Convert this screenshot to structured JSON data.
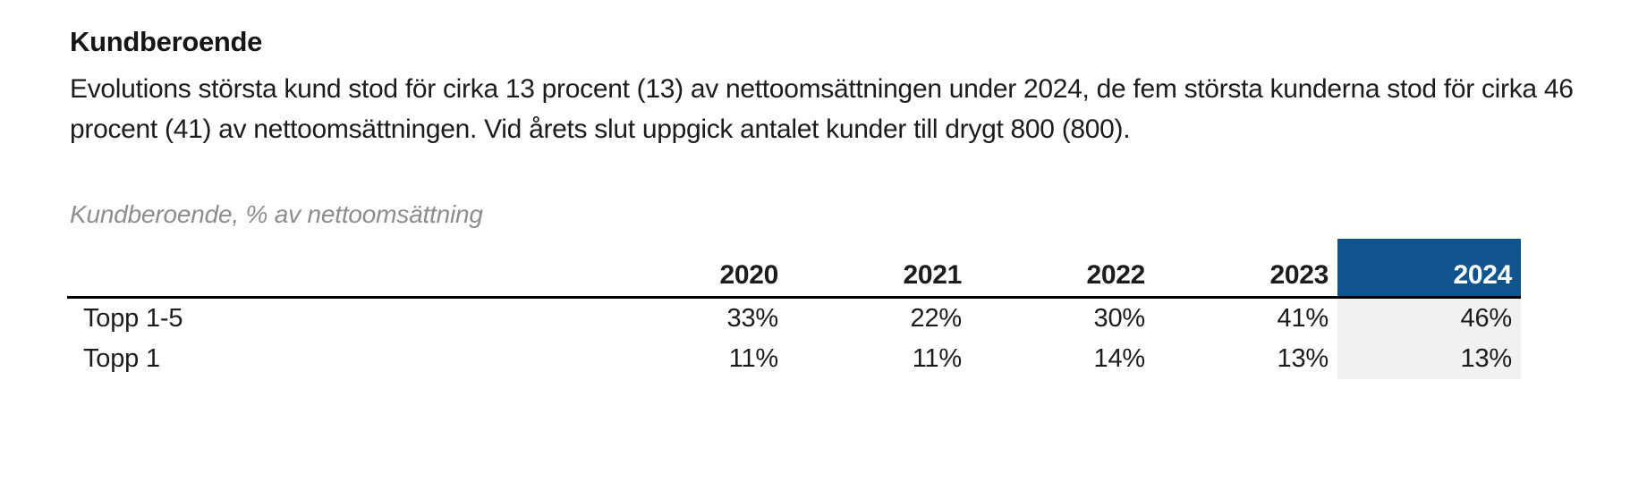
{
  "colors": {
    "accent_blue": "#10548e",
    "highlight_column_bg": "#f1f1f0",
    "caption_gray": "#8d8d8d",
    "text": "#1c1c1c"
  },
  "section": {
    "heading": "Kundberoende",
    "paragraph": "Evolutions största kund stod för cirka 13 procent (13) av nettoomsättningen under 2024, de fem största kunderna stod för cirka 46 procent (41) av nettoomsättningen. Vid årets slut uppgick antalet kunder till drygt 800 (800)."
  },
  "table": {
    "caption": "Kundberoende, % av nettoomsättning",
    "columns": [
      "2020",
      "2021",
      "2022",
      "2023",
      "2024"
    ],
    "highlight_column": "2024",
    "rows": [
      {
        "label": "Topp 1-5",
        "values": [
          "33%",
          "22%",
          "30%",
          "41%",
          "46%"
        ]
      },
      {
        "label": "Topp 1",
        "values": [
          "11%",
          "11%",
          "14%",
          "13%",
          "13%"
        ]
      }
    ]
  }
}
